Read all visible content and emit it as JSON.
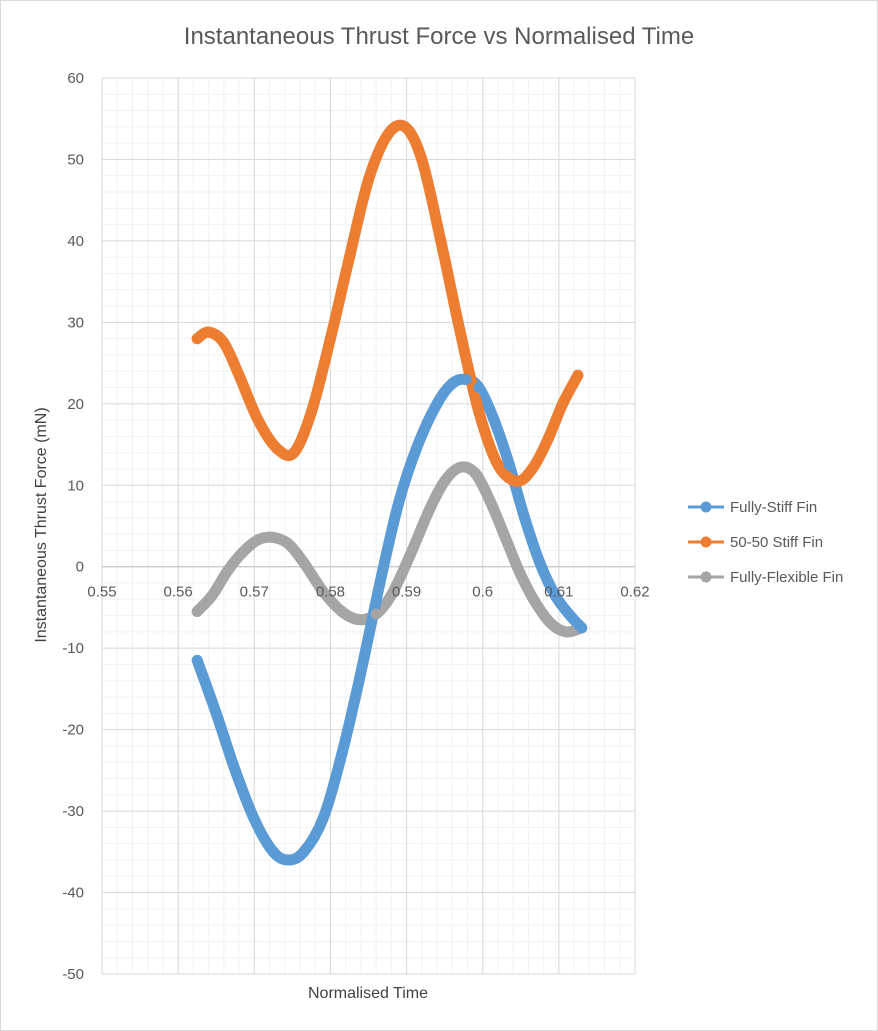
{
  "chart_data": {
    "type": "line",
    "title": "Instantaneous Thrust Force vs Normalised Time",
    "xlabel": "Normalised Time",
    "ylabel": "Instantaneous Thrust Force (mN)",
    "xlim": [
      0.55,
      0.62
    ],
    "ylim": [
      -50,
      60
    ],
    "x_ticks": [
      "0.55",
      "0.56",
      "0.57",
      "0.58",
      "0.59",
      "0.6",
      "0.61",
      "0.62"
    ],
    "y_ticks": [
      "60",
      "50",
      "40",
      "30",
      "20",
      "10",
      "0",
      "-10",
      "-20",
      "-30",
      "-40",
      "-50"
    ],
    "grid": true,
    "legend_position": "right",
    "series": [
      {
        "name": "Fully-Stiff Fin",
        "color": "#5b9bd5",
        "x": [
          0.5625,
          0.565,
          0.5675,
          0.57,
          0.5725,
          0.5745,
          0.5765,
          0.579,
          0.5815,
          0.584,
          0.5865,
          0.589,
          0.5915,
          0.594,
          0.596,
          0.5978,
          0.5995,
          0.6015,
          0.6035,
          0.6055,
          0.6075,
          0.6095,
          0.6115,
          0.613
        ],
        "values": [
          -11.5,
          -18,
          -25,
          -31,
          -35,
          -36,
          -35,
          -31,
          -23,
          -13,
          -2,
          8,
          15,
          20,
          22.5,
          23,
          22,
          18,
          12.5,
          6,
          0.5,
          -3.5,
          -6,
          -7.5
        ]
      },
      {
        "name": "50-50 Stiff Fin",
        "color": "#ed7d31",
        "x": [
          0.5625,
          0.564,
          0.566,
          0.568,
          0.5705,
          0.573,
          0.5752,
          0.5775,
          0.58,
          0.5825,
          0.585,
          0.5875,
          0.5898,
          0.592,
          0.5945,
          0.597,
          0.5995,
          0.602,
          0.6045,
          0.6065,
          0.6085,
          0.6105,
          0.6125
        ],
        "values": [
          28,
          28.8,
          27.5,
          23.5,
          18,
          14.5,
          14,
          19,
          28,
          38,
          47.5,
          53,
          54,
          50,
          40,
          29,
          19,
          12.5,
          10.5,
          12,
          15.5,
          20,
          23.5
        ]
      },
      {
        "name": "Fully-Flexible Fin",
        "color": "#a5a5a5",
        "x": [
          0.5625,
          0.5645,
          0.5665,
          0.5685,
          0.5705,
          0.5725,
          0.5745,
          0.5765,
          0.579,
          0.5815,
          0.5838,
          0.586,
          0.588,
          0.5905,
          0.593,
          0.595,
          0.597,
          0.599,
          0.601,
          0.603,
          0.605,
          0.607,
          0.609,
          0.611,
          0.613
        ],
        "values": [
          -5.5,
          -3.5,
          -0.5,
          1.8,
          3.3,
          3.6,
          2.8,
          0.5,
          -3,
          -5.5,
          -6.5,
          -5.8,
          -3.5,
          1.5,
          7,
          10.5,
          12.2,
          11.5,
          8,
          3.5,
          -1,
          -4.5,
          -7,
          -8,
          -7.5
        ]
      }
    ]
  }
}
